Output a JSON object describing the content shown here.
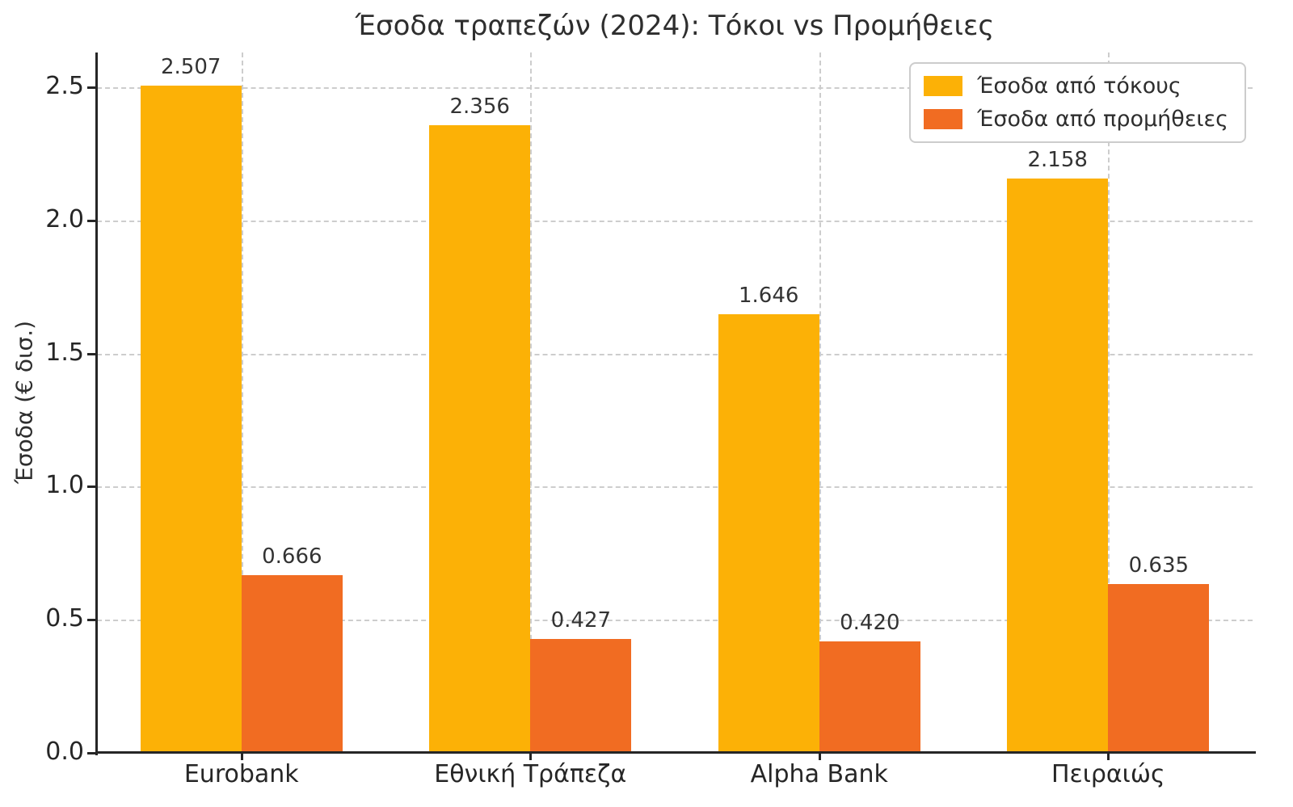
{
  "title": "Έσοδα τραπεζών (2024): Τόκοι vs Προμήθειες",
  "chart_data": {
    "type": "bar",
    "title": "Έσοδα τραπεζών (2024): Τόκοι vs Προμήθειες",
    "ylabel": "Έσοδα (€ δισ.)",
    "xlabel": "",
    "categories": [
      "Eurobank",
      "Εθνική Τράπεζα",
      "Alpha Bank",
      "Πειραιώς"
    ],
    "series": [
      {
        "name": "Έσοδα από τόκους",
        "color": "#FCB106",
        "values": [
          2.507,
          2.356,
          1.646,
          2.158
        ]
      },
      {
        "name": "Έσοδα από προμήθειες",
        "color": "#F16C22",
        "values": [
          0.666,
          0.427,
          0.42,
          0.635
        ]
      }
    ],
    "yticks": [
      0.0,
      0.5,
      1.0,
      1.5,
      2.0,
      2.5
    ],
    "ylim": [
      0,
      2.63
    ],
    "grid": true,
    "grid_style": "dashed",
    "legend_position": "upper right",
    "bar_value_labels": true,
    "value_label_decimals": 3
  }
}
